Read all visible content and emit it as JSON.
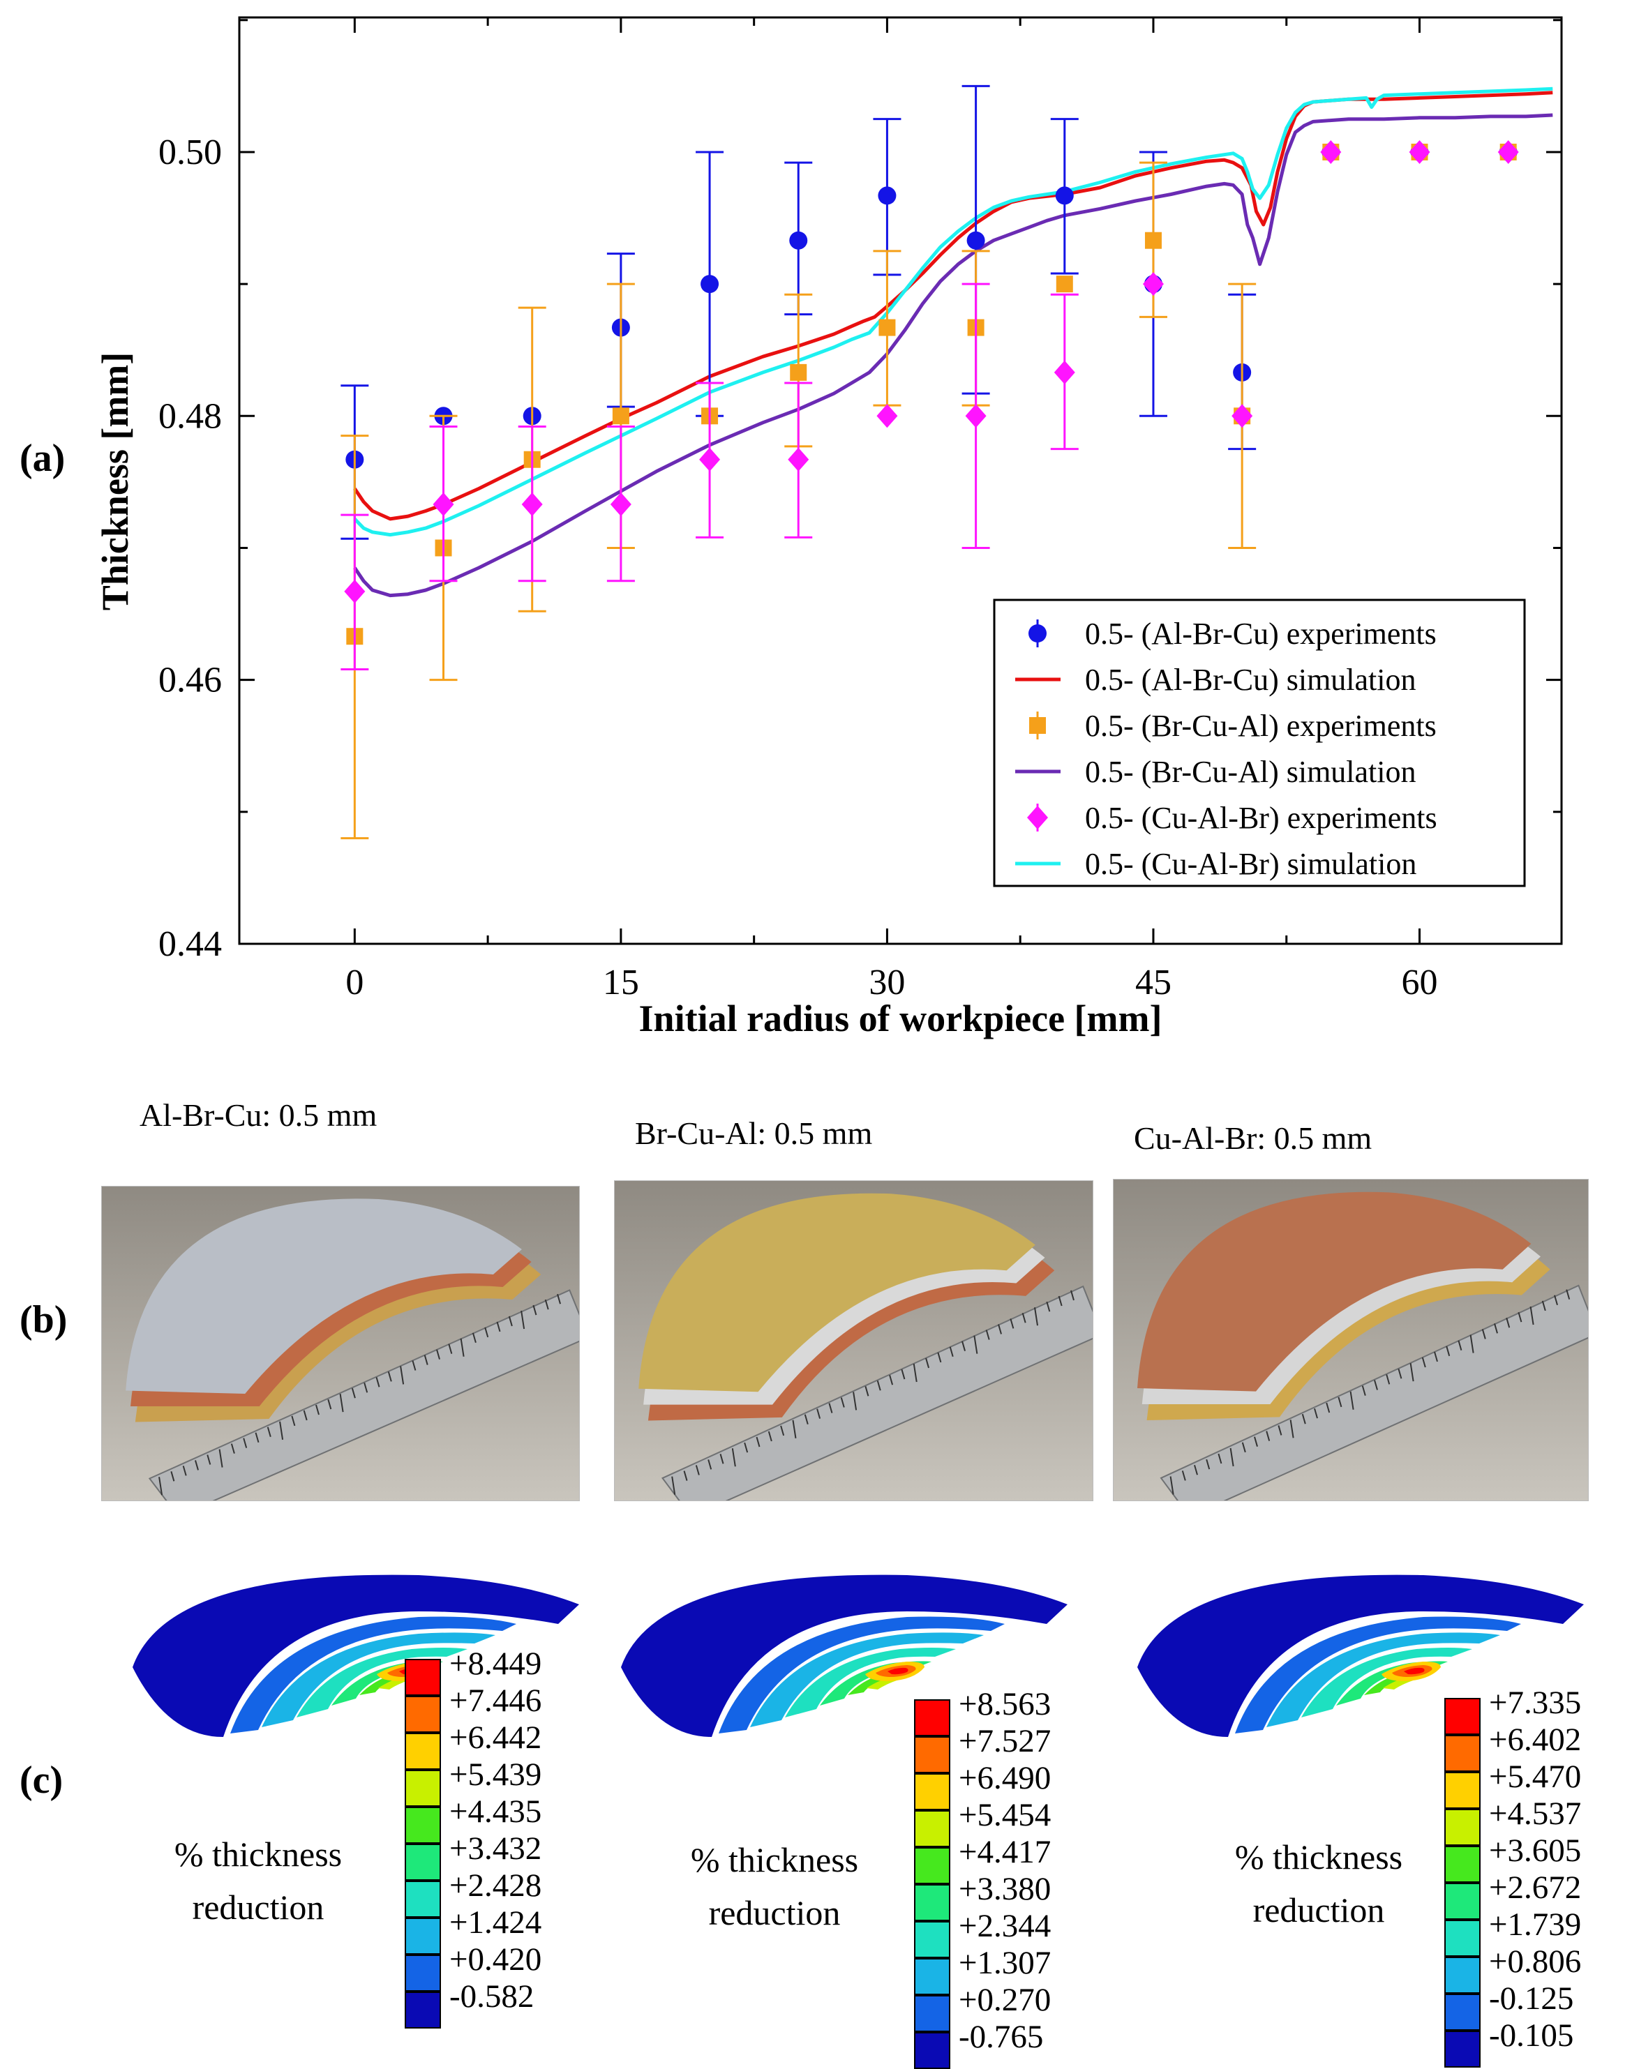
{
  "panel_labels": {
    "a": "(a)",
    "b": "(b)",
    "c": "(c)"
  },
  "chart_data": {
    "type": "line+scatter-errorbar",
    "xlabel": "Initial radius of workpiece [mm]",
    "ylabel": "Thickness [mm]",
    "xlim": [
      -6.5,
      68
    ],
    "ylim": [
      0.44,
      0.5102
    ],
    "xticks": [
      0,
      15,
      30,
      45,
      60
    ],
    "xticklabels": [
      "0",
      "15",
      "30",
      "45",
      "60"
    ],
    "yticks": [
      0.44,
      0.46,
      0.48,
      0.5
    ],
    "yticklabels": [
      "0.44",
      "0.46",
      "0.48",
      "0.50"
    ],
    "legend_position": "bottom-right",
    "legend": [
      {
        "label": "0.5- (Al-Br-Cu) experiments",
        "kind": "circle",
        "color": "#1414e6"
      },
      {
        "label": "0.5- (Al-Br-Cu) simulation",
        "kind": "line",
        "color": "#e81010"
      },
      {
        "label": "0.5- (Br-Cu-Al) experiments",
        "kind": "square",
        "color": "#f5a01a"
      },
      {
        "label": "0.5- (Br-Cu-Al) simulation",
        "kind": "line",
        "color": "#6a2bb3"
      },
      {
        "label": "0.5- (Cu-Al-Br) experiments",
        "kind": "diamond",
        "color": "#ff14ff"
      },
      {
        "label": "0.5- (Cu-Al-Br) simulation",
        "kind": "line",
        "color": "#1ef0f0"
      }
    ],
    "experiments": [
      {
        "name": "0.5- (Al-Br-Cu) experiments",
        "color": "#1414e6",
        "marker": "circle",
        "points": [
          [
            0,
            0.4767,
            0.4707,
            0.4823
          ],
          [
            5,
            0.48,
            null,
            null
          ],
          [
            10,
            0.48,
            null,
            null
          ],
          [
            15,
            0.4867,
            0.4807,
            0.4923
          ],
          [
            20,
            0.49,
            0.48,
            0.5
          ],
          [
            25,
            0.4933,
            0.4877,
            0.4992
          ],
          [
            30,
            0.4967,
            0.4907,
            0.5025
          ],
          [
            35,
            0.4933,
            0.4817,
            0.505
          ],
          [
            40,
            0.4967,
            0.4908,
            0.5025
          ],
          [
            45,
            0.49,
            0.48,
            0.5
          ],
          [
            50,
            0.4833,
            0.4775,
            0.4892
          ],
          [
            55,
            0.5,
            null,
            null
          ],
          [
            60,
            0.5,
            null,
            null
          ],
          [
            65,
            0.5,
            null,
            null
          ]
        ]
      },
      {
        "name": "0.5- (Br-Cu-Al) experiments",
        "color": "#f5a01a",
        "marker": "square",
        "points": [
          [
            0,
            0.4633,
            0.448,
            0.4785
          ],
          [
            5,
            0.47,
            0.46,
            0.48
          ],
          [
            10,
            0.4767,
            0.4652,
            0.4882
          ],
          [
            15,
            0.48,
            0.47,
            0.49
          ],
          [
            20,
            0.48,
            null,
            null
          ],
          [
            25,
            0.4833,
            0.4777,
            0.4892
          ],
          [
            30,
            0.4867,
            0.4808,
            0.4925
          ],
          [
            35,
            0.4867,
            0.4808,
            0.4925
          ],
          [
            40,
            0.49,
            null,
            null
          ],
          [
            45,
            0.4933,
            0.4875,
            0.4992
          ],
          [
            50,
            0.48,
            0.47,
            0.49
          ],
          [
            55,
            0.5,
            null,
            null
          ],
          [
            60,
            0.5,
            null,
            null
          ],
          [
            65,
            0.5,
            null,
            null
          ]
        ]
      },
      {
        "name": "0.5- (Cu-Al-Br) experiments",
        "color": "#ff14ff",
        "marker": "diamond",
        "points": [
          [
            0,
            0.4667,
            0.4608,
            0.4725
          ],
          [
            5,
            0.4733,
            0.4675,
            0.4792
          ],
          [
            10,
            0.4733,
            0.4675,
            0.4792
          ],
          [
            15,
            0.4733,
            0.4675,
            0.4792
          ],
          [
            20,
            0.4767,
            0.4708,
            0.4825
          ],
          [
            25,
            0.4767,
            0.4708,
            0.4825
          ],
          [
            30,
            0.48,
            null,
            null
          ],
          [
            35,
            0.48,
            0.47,
            0.49
          ],
          [
            40,
            0.4833,
            0.4775,
            0.4892
          ],
          [
            45,
            0.49,
            null,
            null
          ],
          [
            50,
            0.48,
            null,
            null
          ],
          [
            55,
            0.5,
            null,
            null
          ],
          [
            60,
            0.5,
            null,
            null
          ],
          [
            65,
            0.5,
            null,
            null
          ]
        ]
      }
    ],
    "simulations": [
      {
        "name": "0.5- (Al-Br-Cu) simulation",
        "color": "#e81010",
        "x": [
          0,
          0.5,
          1,
          2,
          3,
          4,
          5,
          7,
          10,
          13,
          15,
          17,
          20,
          23,
          25,
          27,
          28,
          28.7,
          29.3,
          30,
          31,
          32,
          33,
          34,
          35,
          36,
          37,
          38,
          40,
          42,
          44,
          46,
          48,
          49,
          49.5,
          50,
          50.5,
          50.8,
          51.2,
          51.6,
          52,
          52.5,
          53,
          53.5,
          54,
          56,
          58,
          60,
          62,
          64,
          66,
          67.5
        ],
        "y": [
          0.4745,
          0.4735,
          0.4728,
          0.4722,
          0.4724,
          0.4728,
          0.4733,
          0.4745,
          0.4765,
          0.4785,
          0.4798,
          0.481,
          0.483,
          0.4845,
          0.4853,
          0.4862,
          0.4868,
          0.4872,
          0.4875,
          0.4883,
          0.4895,
          0.4908,
          0.4922,
          0.4935,
          0.4946,
          0.4955,
          0.4962,
          0.4965,
          0.4968,
          0.4973,
          0.4982,
          0.4988,
          0.4993,
          0.4994,
          0.4992,
          0.4988,
          0.4975,
          0.4955,
          0.4945,
          0.4958,
          0.4985,
          0.501,
          0.5027,
          0.5035,
          0.5038,
          0.504,
          0.504,
          0.5041,
          0.5042,
          0.5043,
          0.5044,
          0.5045
        ]
      },
      {
        "name": "0.5- (Br-Cu-Al) simulation",
        "color": "#6a2bb3",
        "x": [
          0,
          0.5,
          1,
          2,
          3,
          4,
          5,
          7,
          10,
          13,
          15,
          17,
          20,
          23,
          25,
          27,
          28,
          29,
          30,
          31,
          32,
          33,
          34,
          35,
          36,
          37,
          38,
          39,
          40,
          42,
          44,
          46,
          48,
          49,
          49.5,
          50,
          50.3,
          50.6,
          51,
          51.5,
          52,
          52.5,
          53,
          53.5,
          54,
          56,
          58,
          60,
          62,
          64,
          66,
          67.5
        ],
        "y": [
          0.4685,
          0.4675,
          0.4668,
          0.4664,
          0.4665,
          0.4668,
          0.4673,
          0.4685,
          0.4705,
          0.4728,
          0.4743,
          0.4758,
          0.4778,
          0.4795,
          0.4805,
          0.4817,
          0.4825,
          0.4833,
          0.4847,
          0.4865,
          0.4885,
          0.4902,
          0.4915,
          0.4925,
          0.4933,
          0.4938,
          0.4943,
          0.4948,
          0.4952,
          0.4957,
          0.4963,
          0.4968,
          0.4974,
          0.4976,
          0.4975,
          0.4968,
          0.4945,
          0.4935,
          0.4915,
          0.4935,
          0.497,
          0.4998,
          0.5015,
          0.502,
          0.5023,
          0.5025,
          0.5025,
          0.5026,
          0.5026,
          0.5027,
          0.5027,
          0.5028
        ]
      },
      {
        "name": "0.5- (Cu-Al-Br) simulation",
        "color": "#1ef0f0",
        "x": [
          0,
          0.5,
          1,
          2,
          3,
          4,
          5,
          7,
          10,
          13,
          15,
          17,
          20,
          23,
          25,
          27,
          28,
          29,
          30,
          31,
          32,
          33,
          34,
          35,
          36,
          37,
          38,
          40,
          42,
          44,
          46,
          48,
          49,
          49.5,
          50,
          50.3,
          50.6,
          51,
          51.5,
          52,
          52.5,
          53,
          53.5,
          54,
          56,
          57,
          57.3,
          57.6,
          58,
          60,
          62,
          64,
          66,
          67.5
        ],
        "y": [
          0.4722,
          0.4715,
          0.4712,
          0.471,
          0.4712,
          0.4715,
          0.472,
          0.4732,
          0.4752,
          0.4772,
          0.4785,
          0.4798,
          0.4818,
          0.4833,
          0.4842,
          0.4852,
          0.4858,
          0.4863,
          0.4878,
          0.4895,
          0.4912,
          0.4928,
          0.494,
          0.495,
          0.4958,
          0.4963,
          0.4966,
          0.497,
          0.4977,
          0.4985,
          0.4991,
          0.4996,
          0.4998,
          0.4999,
          0.4995,
          0.4985,
          0.4972,
          0.4965,
          0.4975,
          0.4998,
          0.5018,
          0.503,
          0.5036,
          0.5038,
          0.504,
          0.5041,
          0.5034,
          0.504,
          0.5043,
          0.5044,
          0.5045,
          0.5046,
          0.5047,
          0.5048
        ]
      }
    ]
  },
  "photos": [
    {
      "title": "Al-Br-Cu: 0.5 mm",
      "layers": [
        "#b9bec6",
        "#c06a45",
        "#c9a04f"
      ]
    },
    {
      "title": "Br-Cu-Al: 0.5 mm",
      "layers": [
        "#c9ae5a",
        "#d9d9d9",
        "#c06a45"
      ]
    },
    {
      "title": "Cu-Al-Br: 0.5 mm",
      "layers": [
        "#b9714f",
        "#d6d6d6",
        "#cfa84e"
      ]
    }
  ],
  "fem": [
    {
      "caption_line1": "% thickness",
      "caption_line2": "reduction",
      "values": [
        "+8.449",
        "+7.446",
        "+6.442",
        "+5.439",
        "+4.435",
        "+3.432",
        "+2.428",
        "+1.424",
        "+0.420",
        "-0.582"
      ]
    },
    {
      "caption_line1": "% thickness",
      "caption_line2": "reduction",
      "values": [
        "+8.563",
        "+7.527",
        "+6.490",
        "+5.454",
        "+4.417",
        "+3.380",
        "+2.344",
        "+1.307",
        "+0.270",
        "-0.765"
      ]
    },
    {
      "caption_line1": "% thickness",
      "caption_line2": "reduction",
      "values": [
        "+7.335",
        "+6.402",
        "+5.470",
        "+4.537",
        "+3.605",
        "+2.672",
        "+1.739",
        "+0.806",
        "-0.125",
        "-0.105"
      ]
    }
  ],
  "colormap": [
    "#ff0000",
    "#ff6a00",
    "#ffd000",
    "#c8f000",
    "#46e81e",
    "#1ee87a",
    "#1ee0c0",
    "#1ab4e6",
    "#1464e6",
    "#0a0ab4"
  ]
}
